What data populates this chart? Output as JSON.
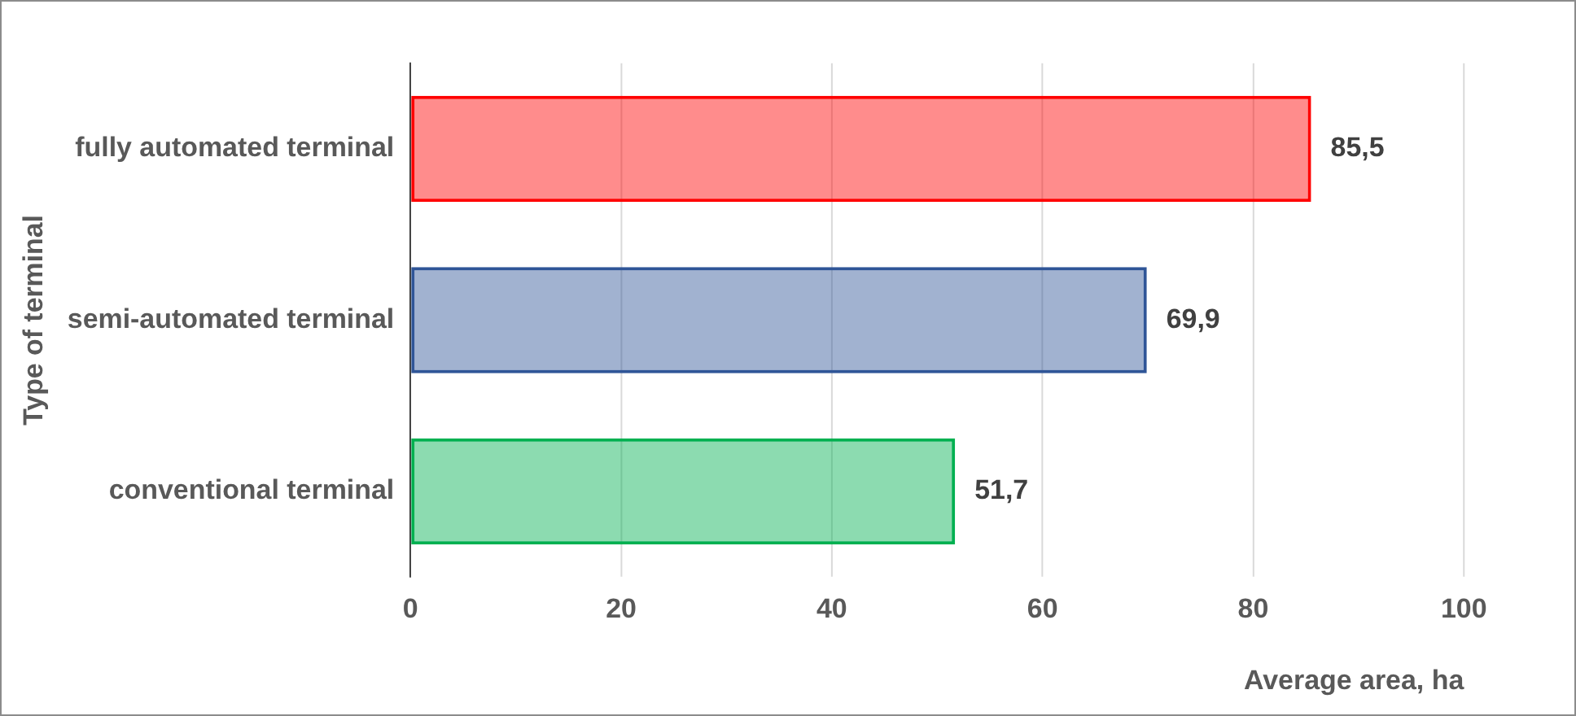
{
  "chart_data": {
    "type": "bar",
    "orientation": "horizontal",
    "xlabel": "Average area, ha",
    "ylabel": "Type of terminal",
    "categories": [
      "fully automated terminal",
      "semi-automated terminal",
      "conventional terminal"
    ],
    "values": [
      85.5,
      69.9,
      51.7
    ],
    "colors": [
      "#ff0000",
      "#2f5597",
      "#00b050"
    ],
    "value_labels": [
      "85,5",
      "69,9",
      "51,7"
    ],
    "xlim": [
      0,
      100
    ],
    "xticks": [
      0,
      20,
      40,
      60,
      80,
      100
    ],
    "grid": "x",
    "legend": false
  }
}
